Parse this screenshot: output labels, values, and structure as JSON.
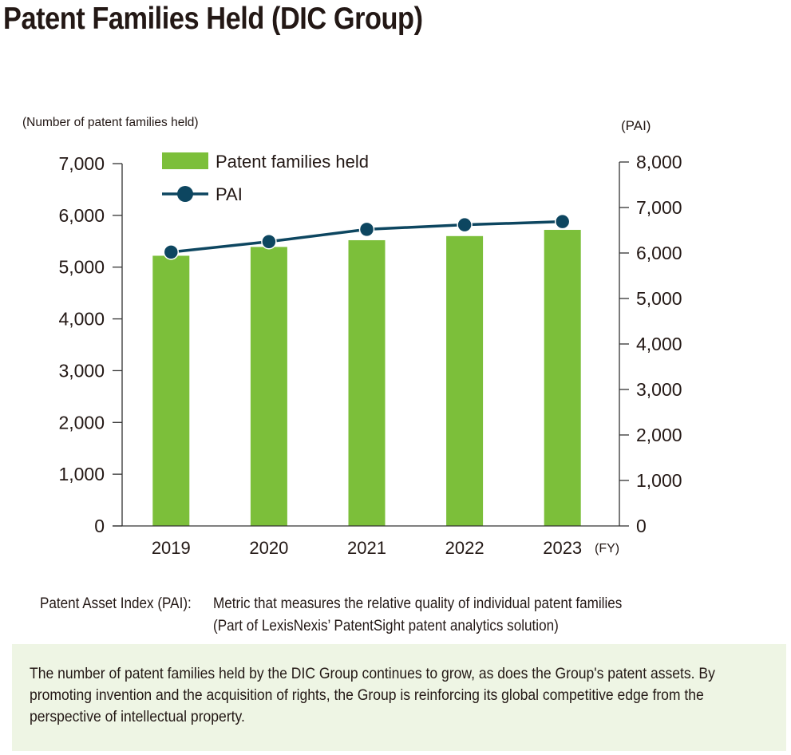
{
  "page": {
    "title": "Patent Families Held (DIC Group)"
  },
  "chart_data": {
    "type": "bar",
    "categories": [
      "2019",
      "2020",
      "2021",
      "2022",
      "2023"
    ],
    "x_unit": "(FY)",
    "series": [
      {
        "name": "Patent families held",
        "type": "bar",
        "axis": "left",
        "color": "#7cbf3a",
        "values": [
          5220,
          5390,
          5520,
          5600,
          5720
        ]
      },
      {
        "name": "PAI",
        "type": "line",
        "axis": "right",
        "color": "#0d4660",
        "values": [
          6020,
          6250,
          6520,
          6620,
          6690
        ]
      }
    ],
    "left_axis": {
      "label": "(Number of patent families held)",
      "ylim": [
        0,
        7000
      ],
      "ticks": [
        0,
        1000,
        2000,
        3000,
        4000,
        5000,
        6000,
        7000
      ],
      "tick_labels": [
        "0",
        "1,000",
        "2,000",
        "3,000",
        "4,000",
        "5,000",
        "6,000",
        "7,000"
      ]
    },
    "right_axis": {
      "label": "(PAI)",
      "ylim": [
        0,
        8000
      ],
      "ticks": [
        0,
        1000,
        2000,
        3000,
        4000,
        5000,
        6000,
        7000,
        8000
      ],
      "tick_labels": [
        "0",
        "1,000",
        "2,000",
        "3,000",
        "4,000",
        "5,000",
        "6,000",
        "7,000",
        "8,000"
      ]
    },
    "legend": {
      "placement": "top-left",
      "items": [
        "Patent families held",
        "PAI"
      ]
    },
    "grid": false
  },
  "notes": {
    "term": "Patent Asset Index (PAI):",
    "definition": "Metric that measures the relative quality of individual patent families",
    "source": "(Part of LexisNexis’ PatentSight patent analytics solution)"
  },
  "summary": {
    "text": "The number of patent families held by the DIC Group continues to grow, as does the Group's patent assets. By promoting invention and the acquisition of rights, the Group is reinforcing its global competitive edge from the perspective of intellectual property."
  }
}
